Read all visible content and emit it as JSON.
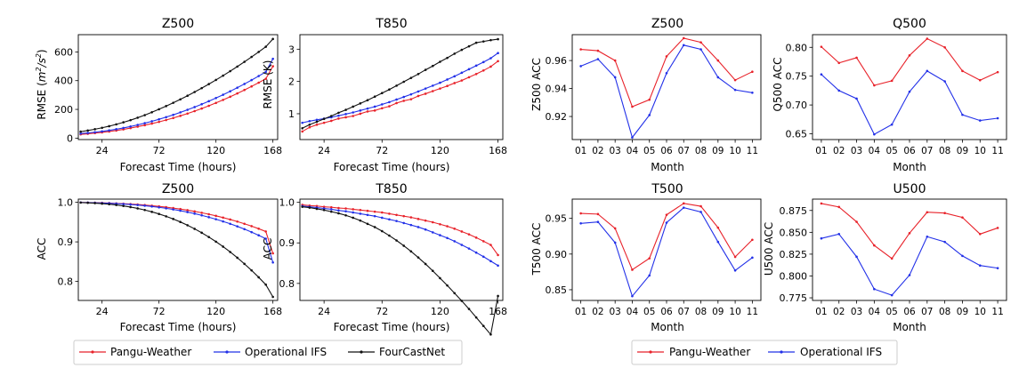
{
  "colors": {
    "pangu": "#e8222a",
    "ifs": "#2230e8",
    "fcn": "#111111"
  },
  "legends": [
    {
      "entries": [
        "Pangu-Weather",
        "Operational IFS",
        "FourCastNet"
      ]
    },
    {
      "entries": [
        "Pangu-Weather",
        "Operational IFS"
      ]
    }
  ],
  "chart_data": [
    {
      "type": "line",
      "title": "Z500",
      "xlabel": "Forecast Time (hours)",
      "ylabel": "RMSE (m²/s²)",
      "ylabel_main": "RMSE (",
      "ylabel_unit": "m",
      "ylabel_sup1": "2",
      "ylabel_sep": "/s",
      "ylabel_sup2": "2",
      "ylabel_close": ")",
      "xticks": [
        "24",
        "72",
        "120",
        "168"
      ],
      "yticks": [
        "0",
        "200",
        "400",
        "600"
      ],
      "xlim": [
        4,
        172
      ],
      "ylim": [
        -10,
        720
      ],
      "x": [
        6,
        12,
        18,
        24,
        30,
        36,
        42,
        48,
        54,
        60,
        66,
        72,
        78,
        84,
        90,
        96,
        102,
        108,
        114,
        120,
        126,
        132,
        138,
        144,
        150,
        156,
        162,
        168
      ],
      "series": [
        {
          "name": "Pangu-Weather",
          "color_key": "pangu",
          "values": [
            26,
            30,
            35,
            40,
            46,
            53,
            61,
            70,
            80,
            90,
            101,
            113,
            126,
            140,
            155,
            171,
            188,
            206,
            225,
            245,
            266,
            288,
            311,
            335,
            360,
            386,
            413,
            500
          ]
        },
        {
          "name": "Operational IFS",
          "color_key": "ifs",
          "values": [
            32,
            36,
            41,
            47,
            54,
            62,
            71,
            81,
            92,
            104,
            117,
            131,
            146,
            162,
            179,
            197,
            216,
            236,
            257,
            279,
            302,
            326,
            351,
            377,
            404,
            432,
            461,
            552
          ]
        },
        {
          "name": "FourCastNet",
          "color_key": "fcn",
          "values": [
            45,
            53,
            62,
            72,
            83,
            96,
            110,
            125,
            142,
            160,
            180,
            201,
            223,
            246,
            270,
            295,
            321,
            348,
            376,
            405,
            435,
            466,
            498,
            531,
            565,
            600,
            636,
            690
          ]
        }
      ]
    },
    {
      "type": "line",
      "title": "T850",
      "xlabel": "Forecast Time (hours)",
      "ylabel": "RMSE (K)",
      "xticks": [
        "24",
        "72",
        "120",
        "168"
      ],
      "yticks": [
        "1",
        "2",
        "3"
      ],
      "xlim": [
        4,
        172
      ],
      "ylim": [
        0.2,
        3.45
      ],
      "x": [
        6,
        12,
        18,
        24,
        30,
        36,
        42,
        48,
        54,
        60,
        66,
        72,
        78,
        84,
        90,
        96,
        102,
        108,
        114,
        120,
        126,
        132,
        138,
        144,
        150,
        156,
        162,
        168
      ],
      "series": [
        {
          "name": "Pangu-Weather",
          "color_key": "pangu",
          "values": [
            0.45,
            0.58,
            0.66,
            0.72,
            0.78,
            0.85,
            0.89,
            0.93,
            1.0,
            1.07,
            1.1,
            1.17,
            1.23,
            1.33,
            1.4,
            1.45,
            1.55,
            1.62,
            1.7,
            1.78,
            1.86,
            1.95,
            2.03,
            2.13,
            2.23,
            2.34,
            2.46,
            2.63
          ]
        },
        {
          "name": "Operational IFS",
          "color_key": "ifs",
          "values": [
            0.72,
            0.77,
            0.81,
            0.85,
            0.89,
            0.94,
            0.99,
            1.04,
            1.1,
            1.16,
            1.22,
            1.29,
            1.36,
            1.44,
            1.52,
            1.6,
            1.69,
            1.78,
            1.87,
            1.96,
            2.06,
            2.16,
            2.27,
            2.38,
            2.49,
            2.6,
            2.72,
            2.88
          ]
        },
        {
          "name": "FourCastNet",
          "color_key": "fcn",
          "values": [
            0.55,
            0.66,
            0.75,
            0.84,
            0.93,
            1.03,
            1.12,
            1.22,
            1.32,
            1.42,
            1.53,
            1.64,
            1.75,
            1.87,
            1.99,
            2.11,
            2.23,
            2.36,
            2.48,
            2.61,
            2.73,
            2.86,
            2.98,
            3.09,
            3.2,
            3.24,
            3.28,
            3.31
          ]
        }
      ]
    },
    {
      "type": "line",
      "title": "Z500",
      "xlabel": "Forecast Time (hours)",
      "ylabel": "ACC",
      "xticks": [
        "24",
        "72",
        "120",
        "168"
      ],
      "yticks": [
        "0.8",
        "0.9",
        "1.0"
      ],
      "xlim": [
        4,
        172
      ],
      "ylim": [
        0.752,
        1.008
      ],
      "x": [
        6,
        12,
        18,
        24,
        30,
        36,
        42,
        48,
        54,
        60,
        66,
        72,
        78,
        84,
        90,
        96,
        102,
        108,
        114,
        120,
        126,
        132,
        138,
        144,
        150,
        156,
        162,
        168
      ],
      "series": [
        {
          "name": "Pangu-Weather",
          "color_key": "pangu",
          "values": [
            0.9996,
            0.9993,
            0.999,
            0.9985,
            0.998,
            0.9973,
            0.9965,
            0.9955,
            0.9943,
            0.993,
            0.9914,
            0.9896,
            0.9876,
            0.9853,
            0.9828,
            0.98,
            0.9769,
            0.9735,
            0.9698,
            0.9657,
            0.9613,
            0.9565,
            0.9513,
            0.9457,
            0.9397,
            0.9332,
            0.9262,
            0.871
          ]
        },
        {
          "name": "Operational IFS",
          "color_key": "ifs",
          "values": [
            0.9995,
            0.9991,
            0.9987,
            0.9981,
            0.9974,
            0.9966,
            0.9956,
            0.9944,
            0.993,
            0.9913,
            0.9894,
            0.9872,
            0.9847,
            0.9819,
            0.9787,
            0.9752,
            0.9713,
            0.967,
            0.9623,
            0.9572,
            0.9516,
            0.9456,
            0.9391,
            0.9321,
            0.9246,
            0.9166,
            0.908,
            0.848
          ]
        },
        {
          "name": "FourCastNet",
          "color_key": "fcn",
          "values": [
            0.9993,
            0.9986,
            0.9978,
            0.9966,
            0.9951,
            0.9932,
            0.9908,
            0.9879,
            0.9845,
            0.9805,
            0.9758,
            0.9705,
            0.9645,
            0.9578,
            0.9503,
            0.942,
            0.9329,
            0.923,
            0.9122,
            0.9005,
            0.8879,
            0.8744,
            0.8599,
            0.8444,
            0.828,
            0.8105,
            0.792,
            0.761
          ]
        }
      ]
    },
    {
      "type": "line",
      "title": "T850",
      "xlabel": "Forecast Time (hours)",
      "ylabel": "ACC",
      "xticks": [
        "24",
        "72",
        "120",
        "168"
      ],
      "yticks": [
        "0.8",
        "0.9",
        "1.0"
      ],
      "xlim": [
        4,
        172
      ],
      "ylim": [
        0.758,
        1.008
      ],
      "x": [
        6,
        12,
        18,
        24,
        30,
        36,
        42,
        48,
        54,
        60,
        66,
        72,
        78,
        84,
        90,
        96,
        102,
        108,
        114,
        120,
        126,
        132,
        138,
        144,
        150,
        156,
        162,
        168
      ],
      "series": [
        {
          "name": "Pangu-Weather",
          "color_key": "pangu",
          "values": [
            0.994,
            0.992,
            0.991,
            0.989,
            0.988,
            0.986,
            0.985,
            0.983,
            0.981,
            0.979,
            0.977,
            0.975,
            0.972,
            0.969,
            0.966,
            0.963,
            0.959,
            0.955,
            0.951,
            0.946,
            0.941,
            0.935,
            0.928,
            0.921,
            0.913,
            0.904,
            0.895,
            0.87
          ]
        },
        {
          "name": "Operational IFS",
          "color_key": "ifs",
          "values": [
            0.991,
            0.989,
            0.987,
            0.985,
            0.983,
            0.98,
            0.978,
            0.975,
            0.972,
            0.969,
            0.966,
            0.962,
            0.958,
            0.954,
            0.949,
            0.944,
            0.939,
            0.933,
            0.926,
            0.919,
            0.912,
            0.904,
            0.895,
            0.886,
            0.876,
            0.866,
            0.855,
            0.844
          ]
        },
        {
          "name": "FourCastNet",
          "color_key": "fcn",
          "values": [
            0.989,
            0.987,
            0.984,
            0.981,
            0.977,
            0.973,
            0.968,
            0.962,
            0.955,
            0.947,
            0.939,
            0.929,
            0.918,
            0.906,
            0.893,
            0.879,
            0.864,
            0.848,
            0.831,
            0.813,
            0.795,
            0.776,
            0.757,
            0.737,
            0.716,
            0.695,
            0.674,
            0.769
          ]
        }
      ]
    },
    {
      "type": "line",
      "title": "Z500",
      "xlabel": "Month",
      "ylabel": "Z500 ACC",
      "categories": [
        "01",
        "02",
        "03",
        "04",
        "05",
        "06",
        "07",
        "08",
        "09",
        "10",
        "11"
      ],
      "yticks": [
        "0.92",
        "0.94",
        "0.96"
      ],
      "ylim": [
        0.9035,
        0.9785
      ],
      "series": [
        {
          "name": "Pangu-Weather",
          "color_key": "pangu",
          "values": [
            0.968,
            0.967,
            0.96,
            0.927,
            0.932,
            0.963,
            0.976,
            0.973,
            0.96,
            0.946,
            0.952
          ]
        },
        {
          "name": "Operational IFS",
          "color_key": "ifs",
          "values": [
            0.956,
            0.961,
            0.948,
            0.905,
            0.921,
            0.951,
            0.971,
            0.968,
            0.948,
            0.939,
            0.937
          ]
        }
      ]
    },
    {
      "type": "line",
      "title": "Q500",
      "xlabel": "Month",
      "ylabel": "Q500 ACC",
      "categories": [
        "01",
        "02",
        "03",
        "04",
        "05",
        "06",
        "07",
        "08",
        "09",
        "10",
        "11"
      ],
      "yticks": [
        "0.65",
        "0.70",
        "0.75",
        "0.80"
      ],
      "ylim": [
        0.64,
        0.822
      ],
      "series": [
        {
          "name": "Pangu-Weather",
          "color_key": "pangu",
          "values": [
            0.801,
            0.773,
            0.782,
            0.734,
            0.742,
            0.786,
            0.815,
            0.8,
            0.759,
            0.743,
            0.757
          ]
        },
        {
          "name": "Operational IFS",
          "color_key": "ifs",
          "values": [
            0.753,
            0.725,
            0.711,
            0.649,
            0.666,
            0.723,
            0.759,
            0.741,
            0.683,
            0.673,
            0.677
          ]
        }
      ]
    },
    {
      "type": "line",
      "title": "T500",
      "xlabel": "Month",
      "ylabel": "T500 ACC",
      "categories": [
        "01",
        "02",
        "03",
        "04",
        "05",
        "06",
        "07",
        "08",
        "09",
        "10",
        "11"
      ],
      "yticks": [
        "0.85",
        "0.90",
        "0.95"
      ],
      "ylim": [
        0.835,
        0.977
      ],
      "series": [
        {
          "name": "Pangu-Weather",
          "color_key": "pangu",
          "values": [
            0.957,
            0.956,
            0.936,
            0.878,
            0.894,
            0.955,
            0.971,
            0.967,
            0.937,
            0.896,
            0.92
          ]
        },
        {
          "name": "Operational IFS",
          "color_key": "ifs",
          "values": [
            0.943,
            0.945,
            0.916,
            0.841,
            0.87,
            0.944,
            0.965,
            0.959,
            0.917,
            0.877,
            0.895
          ]
        }
      ]
    },
    {
      "type": "line",
      "title": "U500",
      "xlabel": "Month",
      "ylabel": "U500 ACC",
      "categories": [
        "01",
        "02",
        "03",
        "04",
        "05",
        "06",
        "07",
        "08",
        "09",
        "10",
        "11"
      ],
      "yticks": [
        "0.775",
        "0.800",
        "0.825",
        "0.850",
        "0.875"
      ],
      "ylim": [
        0.772,
        0.888
      ],
      "series": [
        {
          "name": "Pangu-Weather",
          "color_key": "pangu",
          "values": [
            0.883,
            0.879,
            0.862,
            0.835,
            0.82,
            0.849,
            0.873,
            0.872,
            0.867,
            0.848,
            0.855
          ]
        },
        {
          "name": "Operational IFS",
          "color_key": "ifs",
          "values": [
            0.843,
            0.848,
            0.822,
            0.785,
            0.778,
            0.801,
            0.845,
            0.839,
            0.823,
            0.812,
            0.809
          ]
        }
      ]
    }
  ]
}
